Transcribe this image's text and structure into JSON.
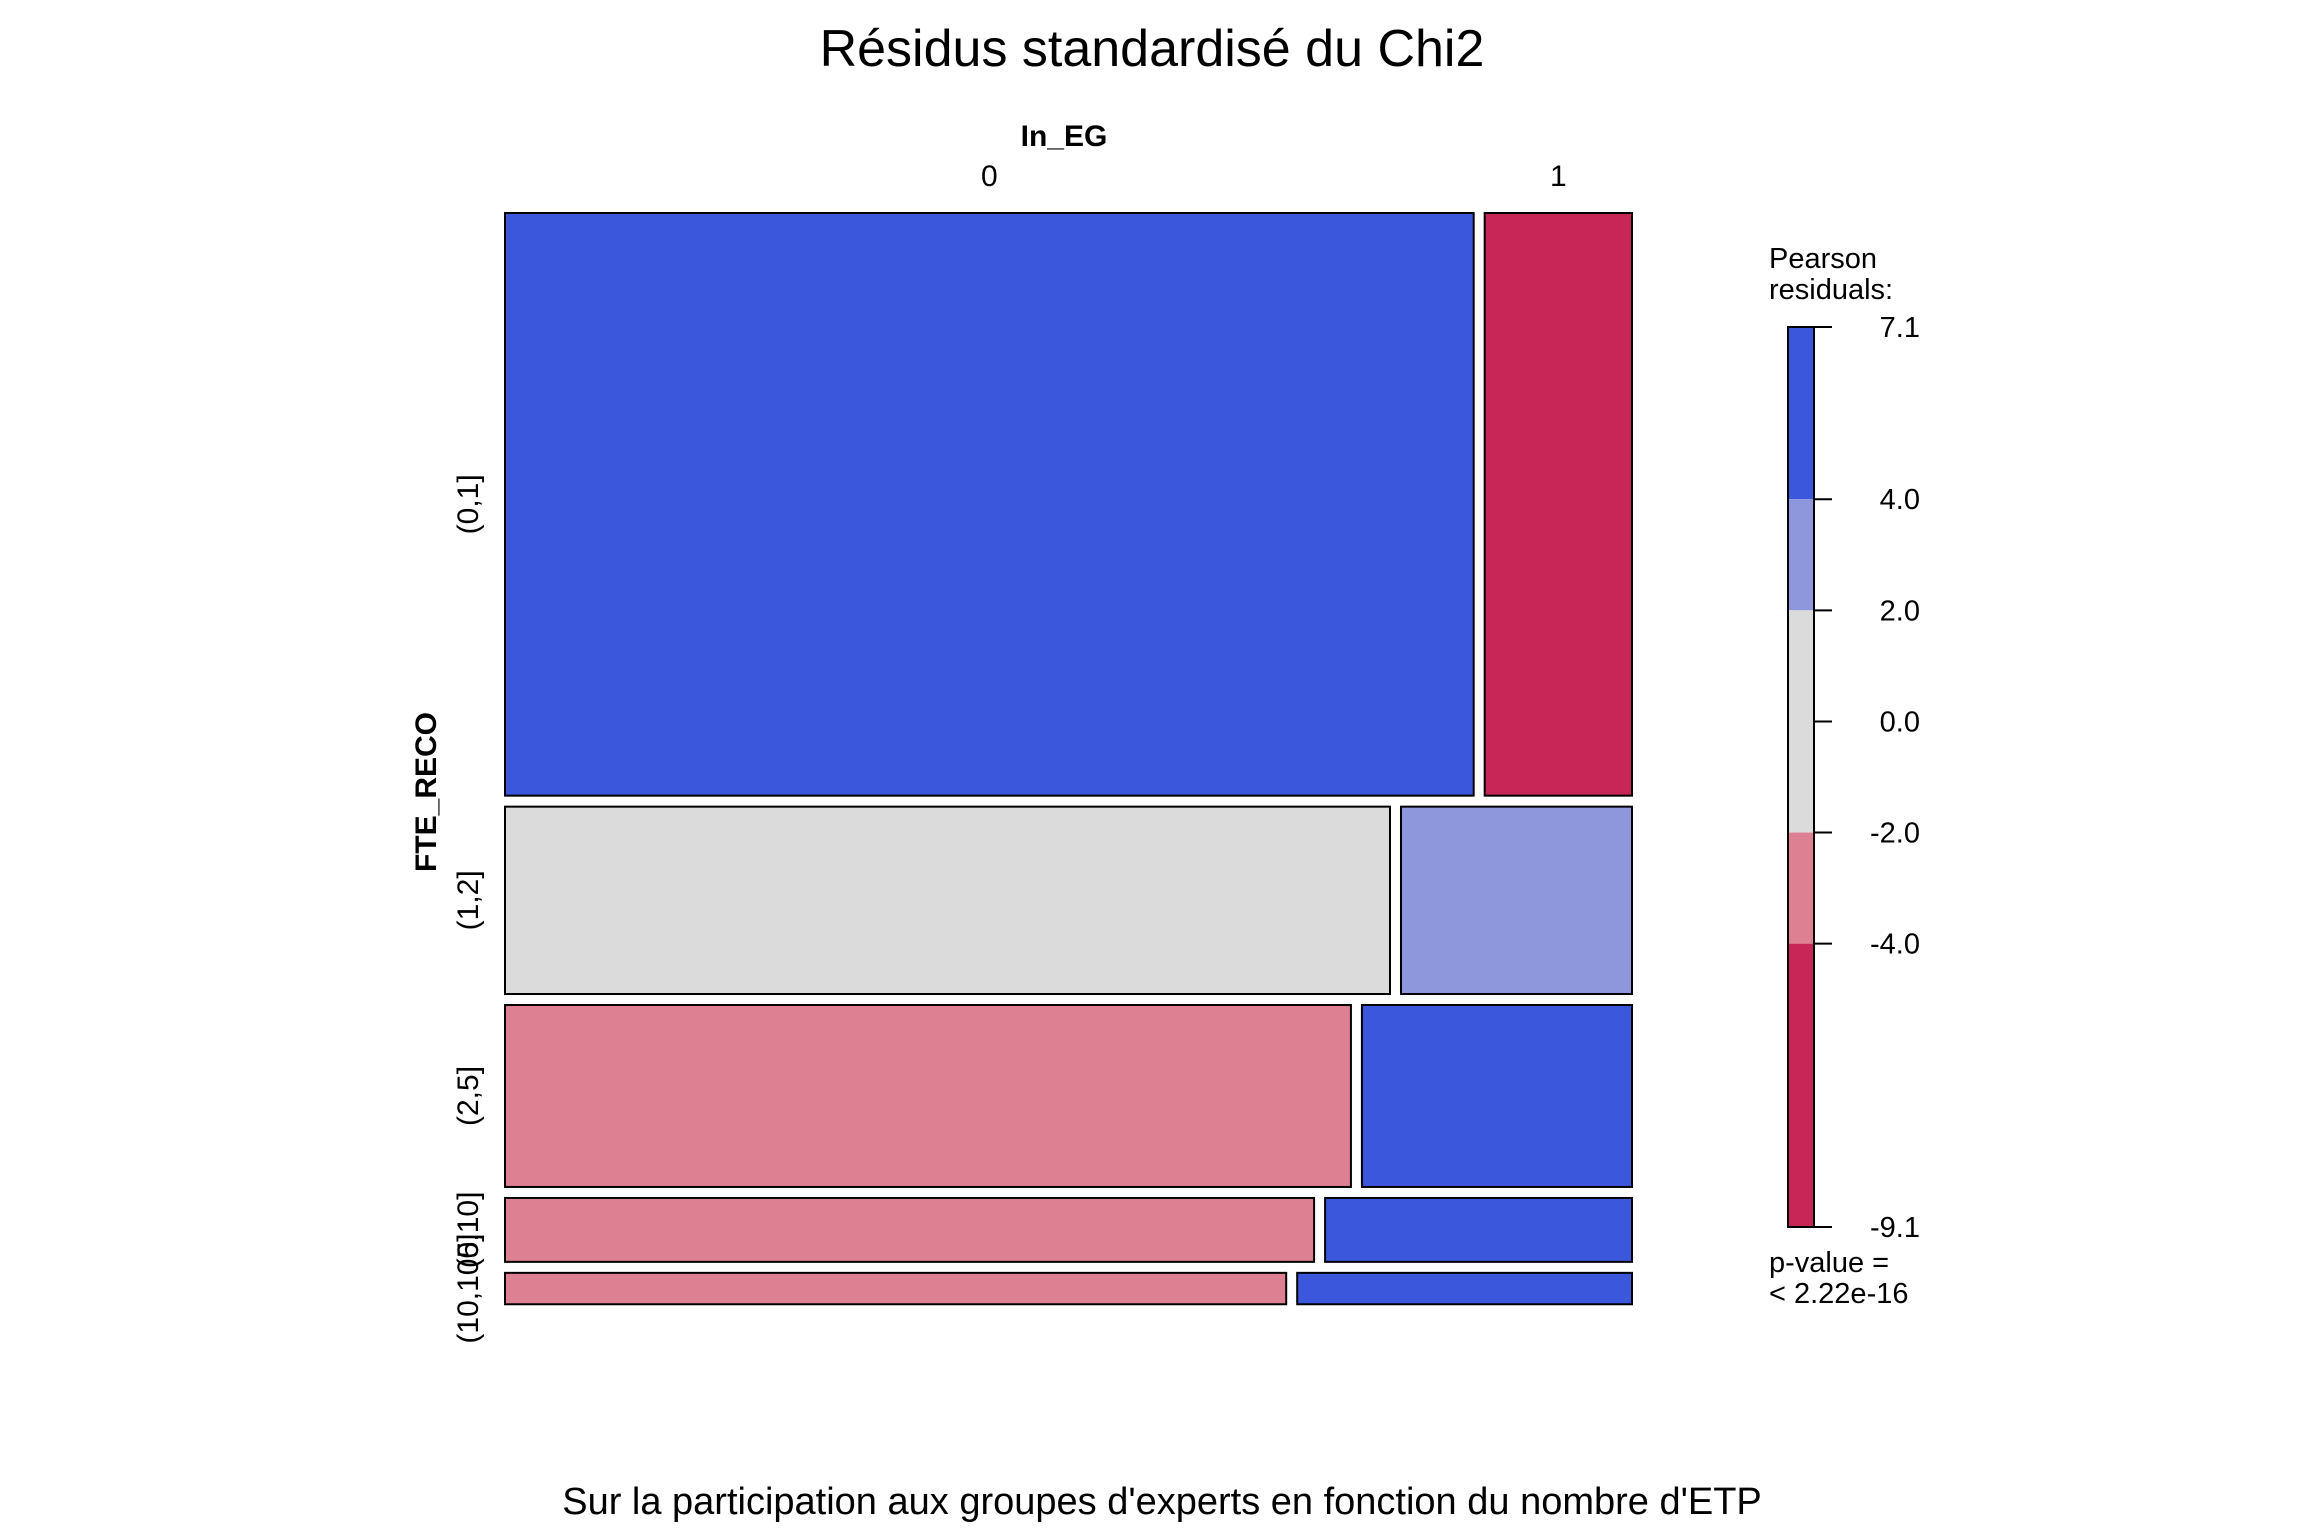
{
  "chart_data": {
    "type": "mosaic",
    "title": "Résidus standardisé du Chi2",
    "subtitle": "Sur la participation aux groupes d'experts en fonction du nombre d'ETP",
    "column_variable": "In_EG",
    "row_variable": "FTE_RECO",
    "columns": [
      "0",
      "1"
    ],
    "rows": [
      "(0,1]",
      "(1,2]",
      "(2,5]",
      "(5,10]",
      "(10,100]"
    ],
    "row_shares": [
      0.538,
      0.173,
      0.168,
      0.059,
      0.029
    ],
    "col0_share_within_row": [
      0.868,
      0.793,
      0.758,
      0.725,
      0.7
    ],
    "residual_shade": [
      [
        ">4",
        "<-4"
      ],
      [
        "-2..2",
        "2..4"
      ],
      [
        "-4..-2",
        ">4"
      ],
      [
        "-4..-2",
        ">4"
      ],
      [
        "-4..-2",
        ">4"
      ]
    ],
    "legend": {
      "title_line1": "Pearson",
      "title_line2": "residuals:",
      "ticks": [
        "7.1",
        "4.0",
        "2.0",
        "0.0",
        "-2.0",
        "-4.0",
        "-9.1"
      ],
      "tick_values": [
        7.1,
        4.0,
        2.0,
        0.0,
        -2.0,
        -4.0,
        -9.1
      ],
      "range": [
        -9.1,
        7.1
      ],
      "pvalue_line1": "p-value =",
      "pvalue_line2": "< 2.22e-16"
    },
    "colors": {
      "strong_pos": "#3B58DD",
      "pos": "#8E97DC",
      "neutral": "#DBDBDB",
      "neg": "#DC8092",
      "strong_neg": "#C72756"
    }
  }
}
